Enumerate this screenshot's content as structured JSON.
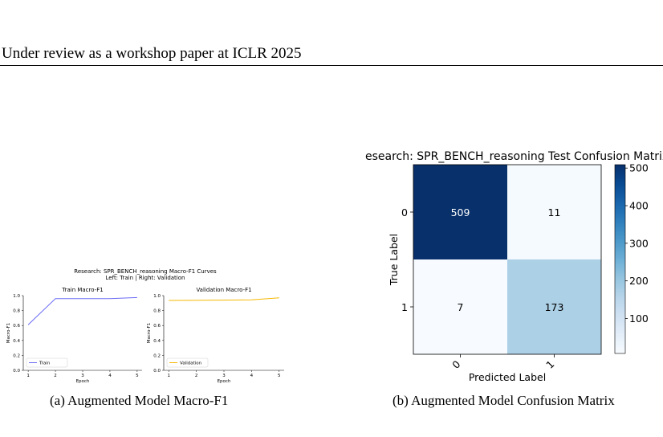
{
  "header": {
    "text": "Under review as a workshop paper at ICLR 2025"
  },
  "figures": {
    "left": {
      "suptitle": "Research: SPR_BENCH_reasoning Macro-F1 Curves",
      "subtitle": "Left: Train  |  Right: Validation",
      "caption": "(a)  Augmented Model Macro-F1"
    },
    "right": {
      "caption": "(b)  Augmented Model Confusion Matrix"
    }
  },
  "chart_data": [
    {
      "type": "line",
      "title": "Train Macro-F1",
      "xlabel": "Epoch",
      "ylabel": "Macro-F1",
      "x": [
        1,
        2,
        3,
        4,
        5
      ],
      "xticks": [
        "1",
        "2",
        "3",
        "4",
        "5"
      ],
      "yticks": [
        "0.0",
        "0.2",
        "0.4",
        "0.6",
        "0.8",
        "1.0"
      ],
      "ylim": [
        0,
        1
      ],
      "series": [
        {
          "name": "Train",
          "values": [
            0.61,
            0.96,
            0.96,
            0.96,
            0.975
          ],
          "color": "#6b6bf5"
        }
      ],
      "legend": "lower-left",
      "grid": false
    },
    {
      "type": "line",
      "title": "Validation Macro-F1",
      "xlabel": "Epoch",
      "ylabel": "Macro-F1",
      "x": [
        1,
        2,
        3,
        4,
        5
      ],
      "xticks": [
        "1",
        "2",
        "3",
        "4",
        "5"
      ],
      "yticks": [
        "0.0",
        "0.2",
        "0.4",
        "0.6",
        "0.8",
        "1.0"
      ],
      "ylim": [
        0,
        1
      ],
      "series": [
        {
          "name": "Validation",
          "values": [
            0.935,
            0.937,
            0.94,
            0.943,
            0.97
          ],
          "color": "#f5b800"
        }
      ],
      "legend": "lower-left",
      "grid": false
    },
    {
      "type": "heatmap",
      "title": "esearch: SPR_BENCH_reasoning Test Confusion Matrix",
      "xlabel": "Predicted Label",
      "ylabel": "True Label",
      "row_labels": [
        "0",
        "1"
      ],
      "col_labels": [
        "0",
        "1"
      ],
      "values": [
        [
          509,
          11
        ],
        [
          7,
          173
        ]
      ],
      "colorbar_ticks": [
        "500",
        "400",
        "300",
        "200",
        "100"
      ],
      "colormap": "Blues",
      "colors": {
        "max": "#08306b",
        "min": "#f7fbff",
        "mid_low": "#a6cee3"
      }
    }
  ]
}
